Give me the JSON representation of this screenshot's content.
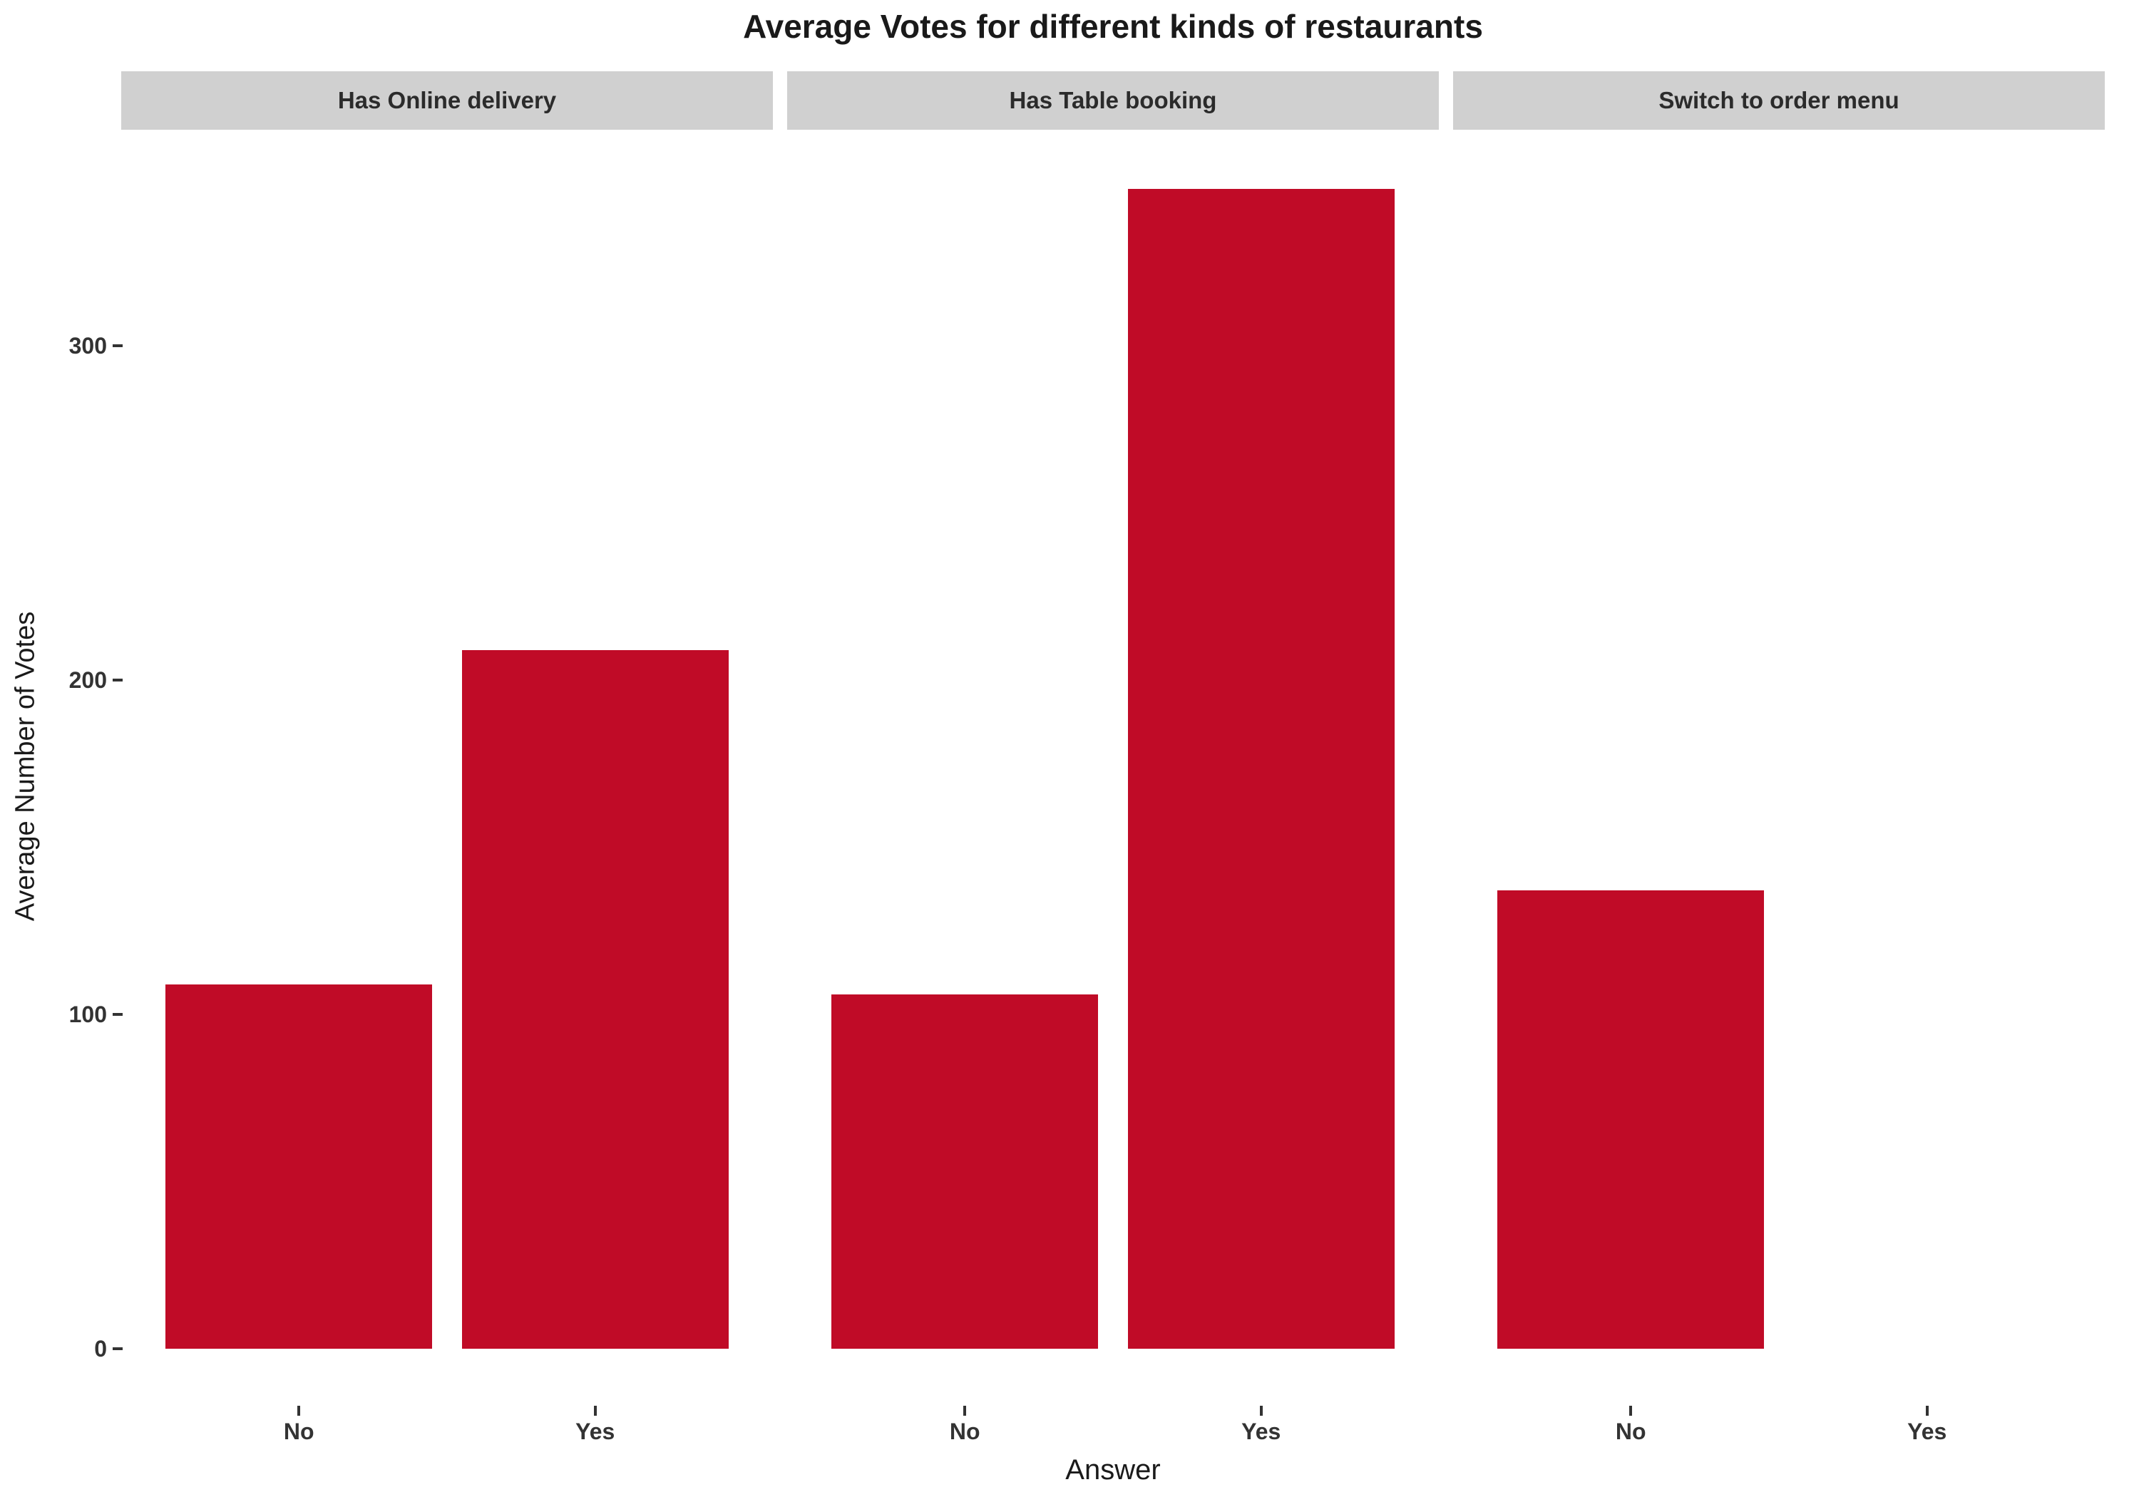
{
  "title": "Average Votes for different kinds of restaurants",
  "axes": {
    "x_title": "Answer",
    "y_title": "Average Number of Votes",
    "y_ticks": [
      0,
      100,
      200,
      300
    ]
  },
  "colors": {
    "bar": "#c00b27",
    "strip_bg": "#d0d0d0",
    "tick_text": "#333333",
    "title_text": "#1a1a1a"
  },
  "chart_data": {
    "type": "bar",
    "title": "Average Votes for different kinds of restaurants",
    "xlabel": "Answer",
    "ylabel": "Average Number of Votes",
    "ylim": [
      0,
      365
    ],
    "grid": false,
    "legend": false,
    "facets": [
      {
        "label": "Has Online delivery",
        "categories": [
          "No",
          "Yes"
        ],
        "values": [
          109,
          209
        ]
      },
      {
        "label": "Has Table booking",
        "categories": [
          "No",
          "Yes"
        ],
        "values": [
          106,
          347
        ]
      },
      {
        "label": "Switch to order menu",
        "categories": [
          "No",
          "Yes"
        ],
        "values": [
          137,
          0
        ]
      }
    ]
  }
}
